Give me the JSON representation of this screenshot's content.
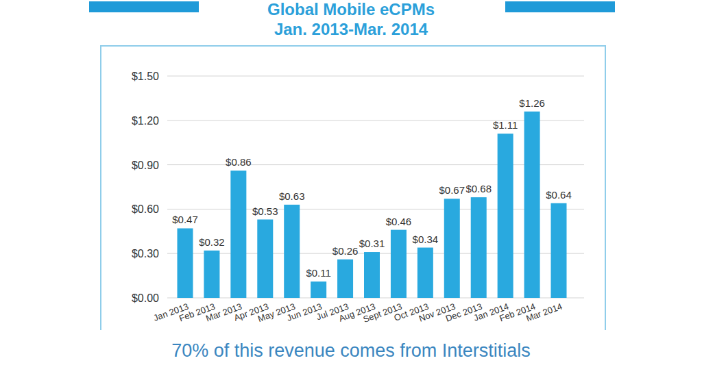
{
  "chart_data": {
    "type": "bar",
    "title": "Global Mobile eCPMs",
    "subtitle": "Jan. 2013-Mar. 2014",
    "annotations": [
      "70% of this revenue comes from Interstitials"
    ],
    "categories": [
      "Jan 2013",
      "Feb 2013",
      "Mar 2013",
      "Apr 2013",
      "May 2013",
      "Jun 2013",
      "Jul 2013",
      "Aug 2013",
      "Sept 2013",
      "Oct 2013",
      "Nov 2013",
      "Dec 2013",
      "Jan 2014",
      "Feb 2014",
      "Mar 2014"
    ],
    "values": [
      0.47,
      0.32,
      0.86,
      0.53,
      0.63,
      0.11,
      0.26,
      0.31,
      0.46,
      0.34,
      0.67,
      0.68,
      1.11,
      1.26,
      0.64
    ],
    "value_labels": [
      "$0.47",
      "$0.32",
      "$0.86",
      "$0.53",
      "$0.63",
      "$0.11",
      "$0.26",
      "$0.31",
      "$0.46",
      "$0.34",
      "$0.67",
      "$0.68",
      "$1.11",
      "$1.26",
      "$0.64"
    ],
    "data_labels": true,
    "color": "#29a9df",
    "ylim": [
      0,
      1.5
    ],
    "yticks": [
      {
        "value": 0,
        "label": "$0.00"
      },
      {
        "value": 0.3,
        "label": "$0.30"
      },
      {
        "value": 0.6,
        "label": "$0.60"
      },
      {
        "value": 0.9,
        "label": "$0.90"
      },
      {
        "value": 1.2,
        "label": "$1.20"
      },
      {
        "value": 1.5,
        "label": "$1.50"
      }
    ],
    "grid": true
  }
}
